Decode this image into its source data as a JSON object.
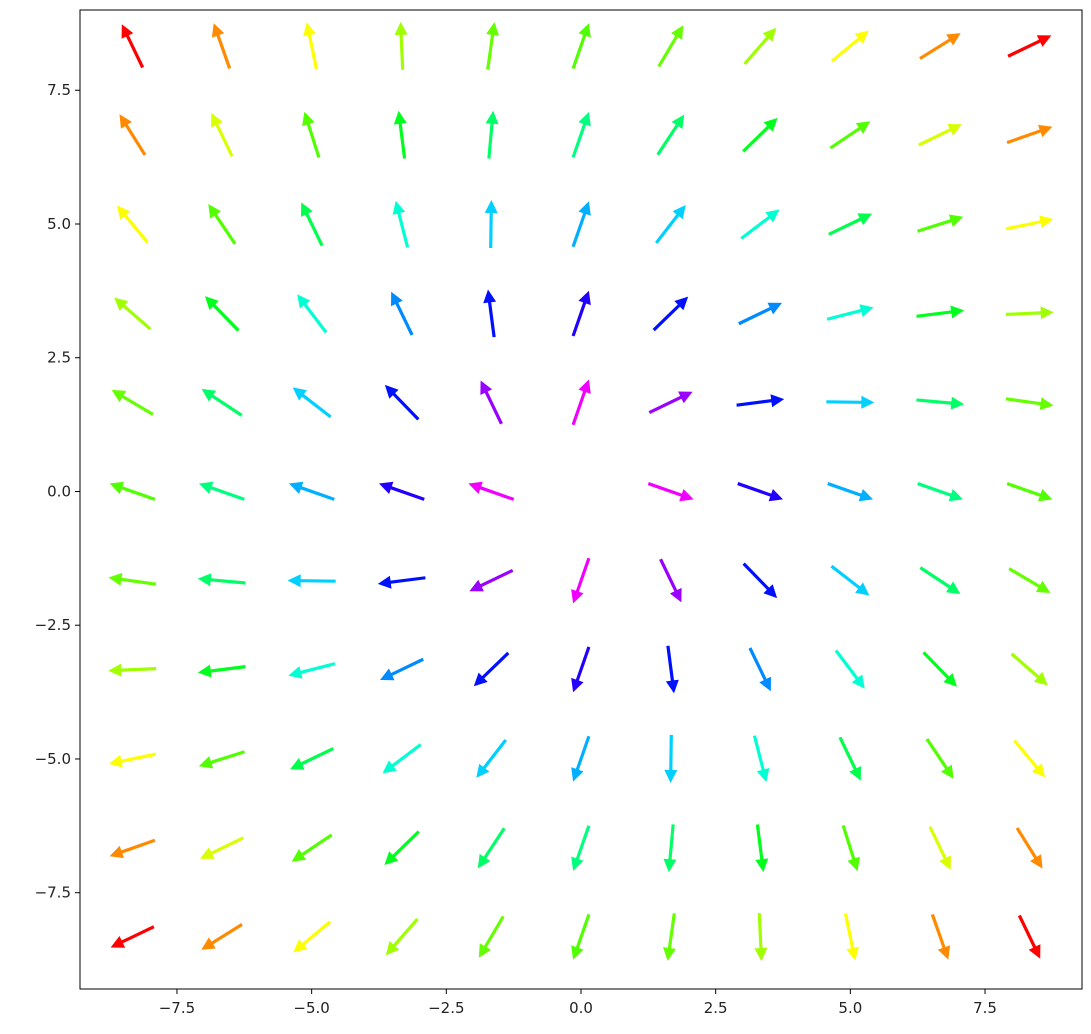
{
  "chart_data": {
    "type": "quiver",
    "title": "",
    "xlabel": "",
    "ylabel": "",
    "xlim": [
      -9.3,
      9.3
    ],
    "ylim": [
      -9.3,
      9.0
    ],
    "grid": false,
    "x": [
      -8.33,
      -6.67,
      -5.0,
      -3.33,
      -1.67,
      0.0,
      1.67,
      3.33,
      5.0,
      6.67,
      8.33
    ],
    "y": [
      -8.33,
      -6.67,
      -5.0,
      -3.33,
      -1.67,
      0.0,
      1.67,
      3.33,
      5.0,
      6.67,
      8.33
    ],
    "field": {
      "u": "x + 0.35*y",
      "v": "y - 0.35*x",
      "color_by": "vector magnitude",
      "colormap": "hsv (red at center → magenta → blue → cyan → green → red at corners)"
    },
    "xticks": [
      {
        "value": -7.5,
        "label": "−7.5"
      },
      {
        "value": -5.0,
        "label": "−5.0"
      },
      {
        "value": -2.5,
        "label": "−2.5"
      },
      {
        "value": 0.0,
        "label": "0.0"
      },
      {
        "value": 2.5,
        "label": "2.5"
      },
      {
        "value": 5.0,
        "label": "5.0"
      },
      {
        "value": 7.5,
        "label": "7.5"
      }
    ],
    "yticks": [
      {
        "value": 7.5,
        "label": "7.5"
      },
      {
        "value": 5.0,
        "label": "5.0"
      },
      {
        "value": 2.5,
        "label": "2.5"
      },
      {
        "value": 0.0,
        "label": "0.0"
      },
      {
        "value": -2.5,
        "label": "−2.5"
      },
      {
        "value": -5.0,
        "label": "−5.0"
      },
      {
        "value": -7.5,
        "label": "−7.5"
      }
    ]
  }
}
